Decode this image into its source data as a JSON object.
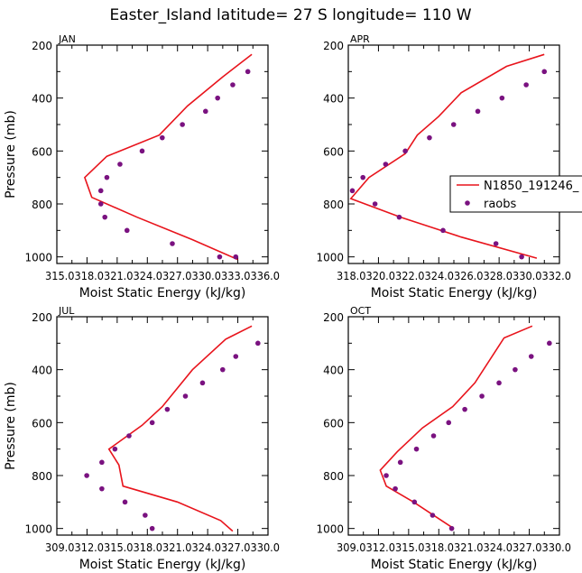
{
  "figure": {
    "title": "Easter_Island  latitude= 27 S longitude= 110 W",
    "line_color": "#e8141c",
    "dot_color": "#7a1280",
    "legend": {
      "line_label": "N1850_191246_",
      "dot_label": "raobs"
    }
  },
  "chart_data": [
    {
      "type": "line",
      "panel": "JAN",
      "xlabel": "Moist Static Energy (kJ/kg)",
      "ylabel": "Pressure (mb)",
      "xlim": [
        315.0318,
        336.0
      ],
      "xticks": [
        "315.0318.0321.0324.0327.0330.0333.0336.0"
      ],
      "ylim": [
        1025,
        200
      ],
      "yticks": [
        200,
        400,
        600,
        800,
        1000
      ],
      "series": [
        {
          "name": "N1850_191246_",
          "kind": "line",
          "x": [
            334.4,
            331.5,
            328.0,
            325.2,
            320.0,
            317.8,
            318.5,
            323.0,
            328.5,
            333.0
          ],
          "y": [
            235,
            320,
            430,
            540,
            620,
            700,
            775,
            850,
            935,
            1010
          ]
        },
        {
          "name": "raobs",
          "kind": "scatter",
          "x": [
            334.0,
            332.5,
            331.0,
            329.8,
            327.5,
            325.5,
            323.5,
            321.3,
            320.0,
            319.4,
            319.4,
            319.8,
            322.0,
            326.5,
            331.2,
            332.8
          ],
          "y": [
            300,
            350,
            400,
            450,
            500,
            550,
            600,
            650,
            700,
            750,
            800,
            850,
            900,
            950,
            1000,
            1000
          ]
        }
      ]
    },
    {
      "type": "line",
      "panel": "APR",
      "xlabel": "Moist Static Energy (kJ/kg)",
      "ylabel": "",
      "xlim": [
        318.0318,
        332.0
      ],
      "xticks": [
        "318.0320.0322.0324.0326.0328.0330.0332.0"
      ],
      "ylim": [
        1025,
        200
      ],
      "yticks": [
        200,
        400,
        600,
        800,
        1000
      ],
      "series": [
        {
          "name": "N1850_191246_",
          "kind": "line",
          "x": [
            331.0,
            328.5,
            325.5,
            324.0,
            322.6,
            321.8,
            319.4,
            318.2,
            321.5,
            325.5,
            330.5
          ],
          "y": [
            235,
            280,
            380,
            470,
            540,
            610,
            700,
            780,
            850,
            925,
            1005
          ]
        },
        {
          "name": "raobs",
          "kind": "scatter",
          "x": [
            331.0,
            329.8,
            328.2,
            326.6,
            325.0,
            323.4,
            321.8,
            320.5,
            319.0,
            318.3,
            319.8,
            321.4,
            324.3,
            327.8,
            329.5
          ],
          "y": [
            300,
            350,
            400,
            450,
            500,
            550,
            600,
            650,
            700,
            750,
            800,
            850,
            900,
            950,
            1000
          ]
        }
      ]
    },
    {
      "type": "line",
      "panel": "JUL",
      "xlabel": "Moist Static Energy (kJ/kg)",
      "ylabel": "Pressure (mb)",
      "xlim": [
        309.0312,
        330.0
      ],
      "xticks": [
        "309.0312.0315.0318.0321.0324.0327.0330.0"
      ],
      "ylim": [
        1025,
        200
      ],
      "yticks": [
        200,
        400,
        600,
        800,
        1000
      ],
      "series": [
        {
          "name": "N1850_191246_",
          "kind": "line",
          "x": [
            328.4,
            325.8,
            322.5,
            319.5,
            317.5,
            314.2,
            315.2,
            315.6,
            321.0,
            325.3,
            326.5
          ],
          "y": [
            235,
            285,
            400,
            540,
            610,
            700,
            760,
            840,
            900,
            970,
            1010
          ]
        },
        {
          "name": "raobs",
          "kind": "scatter",
          "x": [
            329.0,
            326.8,
            325.5,
            323.5,
            321.8,
            320.0,
            318.5,
            316.2,
            314.8,
            313.5,
            312.0,
            313.5,
            315.8,
            317.8,
            318.5
          ],
          "y": [
            300,
            350,
            400,
            450,
            500,
            550,
            600,
            650,
            700,
            750,
            800,
            850,
            900,
            950,
            1000
          ]
        }
      ]
    },
    {
      "type": "line",
      "panel": "OCT",
      "xlabel": "Moist Static Energy (kJ/kg)",
      "ylabel": "",
      "xlim": [
        309.0312,
        330.0
      ],
      "xticks": [
        "309.0312.0315.0318.0321.0324.0327.0330.0"
      ],
      "ylim": [
        1025,
        200
      ],
      "yticks": [
        200,
        400,
        600,
        800,
        1000
      ],
      "series": [
        {
          "name": "N1850_191246_",
          "kind": "line",
          "x": [
            327.3,
            324.5,
            321.6,
            319.4,
            316.4,
            313.9,
            312.2,
            312.8,
            315.5,
            319.5
          ],
          "y": [
            235,
            280,
            450,
            540,
            620,
            710,
            780,
            840,
            900,
            1000
          ]
        },
        {
          "name": "raobs",
          "kind": "scatter",
          "x": [
            329.0,
            327.2,
            325.6,
            324.0,
            322.3,
            320.6,
            319.0,
            317.5,
            315.8,
            314.2,
            312.8,
            313.7,
            315.6,
            317.4,
            319.3
          ],
          "y": [
            300,
            350,
            400,
            450,
            500,
            550,
            600,
            650,
            700,
            750,
            800,
            850,
            900,
            950,
            1000
          ]
        }
      ]
    }
  ]
}
